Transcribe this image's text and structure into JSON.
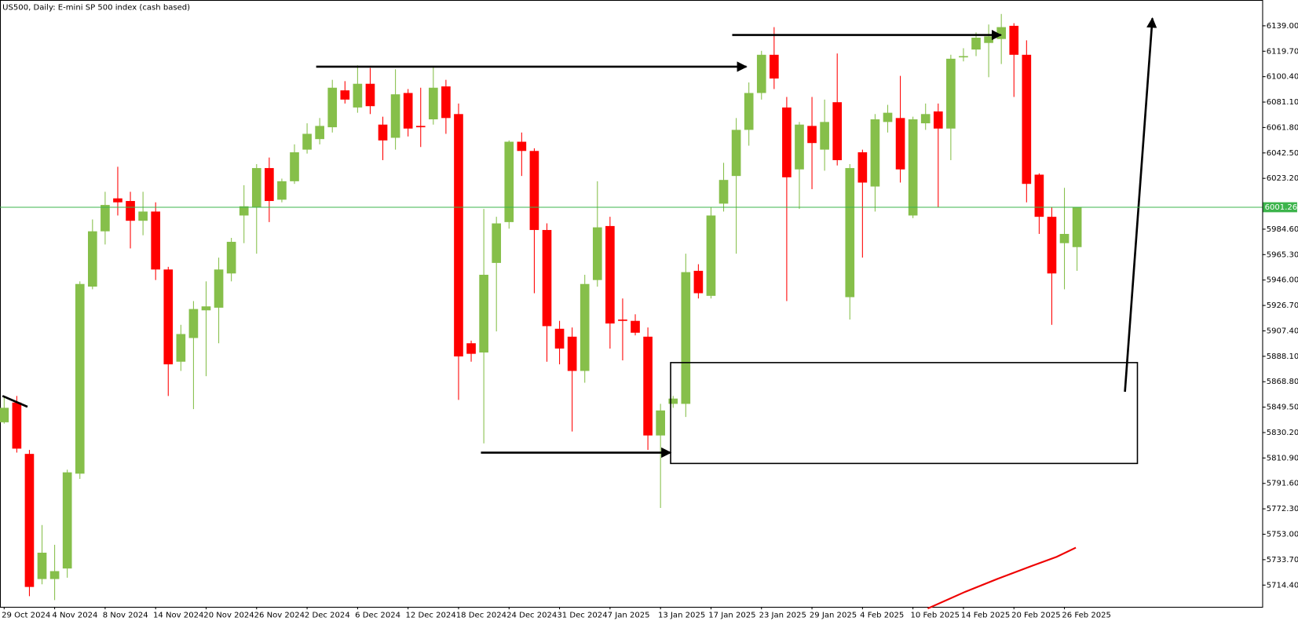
{
  "chart_data": {
    "type": "candlestick",
    "title": "US500, Daily:  E-mini SP 500 index (cash based)",
    "categories": [
      "29 Oct 2024",
      null,
      null,
      null,
      "4 Nov 2024",
      null,
      null,
      null,
      "8 Nov 2024",
      null,
      null,
      null,
      "14 Nov 2024",
      null,
      null,
      null,
      "20 Nov 2024",
      null,
      null,
      null,
      "26 Nov 2024",
      null,
      null,
      null,
      "2 Dec 2024",
      null,
      null,
      null,
      "6 Dec 2024",
      null,
      null,
      null,
      "12 Dec 2024",
      null,
      null,
      null,
      "18 Dec 2024",
      null,
      null,
      null,
      "24 Dec 2024",
      null,
      null,
      null,
      "31 Dec 2024",
      null,
      null,
      null,
      "7 Jan 2025",
      null,
      null,
      null,
      "13 Jan 2025",
      null,
      null,
      null,
      "17 Jan 2025",
      null,
      null,
      null,
      "23 Jan 2025",
      null,
      null,
      null,
      "29 Jan 2025",
      null,
      null,
      null,
      "4 Feb 2025",
      null,
      null,
      null,
      "10 Feb 2025",
      null,
      null,
      null,
      "14 Feb 2025",
      null,
      null,
      null,
      "20 Feb 2025",
      null,
      null,
      null,
      "26 Feb 2025",
      null
    ],
    "open": [
      5838,
      5853,
      5814,
      5719,
      5719,
      5727,
      5799,
      5941,
      5983,
      6008,
      6006,
      5991,
      5998,
      5954,
      5884,
      5902,
      5923,
      5925,
      5951,
      5995,
      6001,
      6031,
      6007,
      6021,
      6045,
      6053,
      6062,
      6090,
      6077,
      6095,
      6064,
      6054,
      6088,
      6063,
      6068,
      6093,
      6072,
      5898,
      5891,
      5959,
      5990,
      6051,
      6044,
      5984,
      5909,
      5903,
      5877,
      5946,
      5987,
      5916,
      5915,
      5903,
      5828,
      5852,
      5852,
      5953,
      5934,
      6004,
      6025,
      6060,
      6088,
      6117,
      6077,
      6030,
      6063,
      6045,
      6081,
      5933,
      6043,
      6017,
      6066,
      6069,
      5995,
      6065,
      6074,
      6061,
      6116,
      6121,
      6126,
      6129,
      6139,
      6117,
      6026,
      5994,
      5974,
      5971
    ],
    "high": [
      5858,
      5858,
      5817,
      5760,
      5745,
      5802,
      5945,
      5992,
      6013,
      6032,
      6013,
      6013,
      6005,
      5956,
      5912,
      5930,
      5945,
      5963,
      5978,
      6018,
      6034,
      6039,
      6023,
      6049,
      6065,
      6069,
      6098,
      6097,
      6109,
      6107,
      6070,
      6106,
      6091,
      6092,
      6108,
      6098,
      6080,
      5900,
      6000,
      5994,
      6052,
      6058,
      6046,
      5989,
      5915,
      5910,
      5950,
      6021,
      5994,
      5932,
      5920,
      5910,
      5852,
      5858,
      5966,
      5958,
      6001,
      6035,
      6069,
      6096,
      6120,
      6138,
      6085,
      6066,
      6085,
      6083,
      6118,
      6034,
      6045,
      6072,
      6079,
      6101,
      6070,
      6080,
      6080,
      6117,
      6122,
      6134,
      6140,
      6148,
      6141,
      6128,
      6027,
      6001,
      6016,
      6001
    ],
    "low": [
      5837,
      5815,
      5706,
      5715,
      5703,
      5720,
      5795,
      5939,
      5973,
      5995,
      5970,
      5980,
      5946,
      5858,
      5877,
      5848,
      5873,
      5898,
      5945,
      5974,
      5966,
      5990,
      6005,
      6019,
      6042,
      6049,
      6058,
      6080,
      6073,
      6072,
      6037,
      6045,
      6055,
      6047,
      6064,
      6057,
      5855,
      5884,
      5822,
      5907,
      5985,
      6025,
      5936,
      5884,
      5882,
      5831,
      5868,
      5941,
      5894,
      5885,
      5904,
      5817,
      5773,
      5849,
      5842,
      5932,
      5932,
      5998,
      5966,
      6048,
      6083,
      6091,
      5930,
      6000,
      6015,
      6029,
      6033,
      5916,
      5963,
      5998,
      6058,
      6020,
      5993,
      6060,
      6001,
      6037,
      6112,
      6116,
      6100,
      6110,
      6085,
      6005,
      5981,
      5912,
      5939,
      5953
    ],
    "close": [
      5849,
      5818,
      5713,
      5739,
      5725,
      5800,
      5943,
      5983,
      6003,
      6005,
      5991,
      5998,
      5954,
      5882,
      5905,
      5924,
      5926,
      5954,
      5975,
      6002,
      6031,
      6006,
      6021,
      6043,
      6057,
      6063,
      6092,
      6083,
      6095,
      6078,
      6052,
      6087,
      6061,
      6062,
      6092,
      6069,
      5888,
      5890,
      5950,
      5989,
      6051,
      6044,
      5984,
      5911,
      5894,
      5877,
      5943,
      5986,
      5913,
      5915,
      5906,
      5828,
      5847,
      5856,
      5952,
      5936,
      5995,
      6022,
      6060,
      6088,
      6117,
      6099,
      6024,
      6064,
      6050,
      6066,
      6037,
      6031,
      6020,
      6068,
      6073,
      6030,
      6068,
      6072,
      6061,
      6114,
      6116,
      6130,
      6131,
      6138,
      6117,
      6019,
      5994,
      5951,
      5981,
      6001
    ],
    "up_color": "#86bf4a",
    "down_color": "#ff0000",
    "current_price": 6001.26,
    "current_price_color": "#3cb44b",
    "ylim": [
      5697.9,
      6158.6
    ],
    "yticks": [
      {
        "value": 6139,
        "label": "6139.00"
      },
      {
        "value": 6119.7,
        "label": "6119.70"
      },
      {
        "value": 6100.4,
        "label": "6100.40"
      },
      {
        "value": 6081.1,
        "label": "6081.10"
      },
      {
        "value": 6061.8,
        "label": "6061.80"
      },
      {
        "value": 6042.5,
        "label": "6042.50"
      },
      {
        "value": 6023.2,
        "label": "6023.20"
      },
      {
        "value": 5984.6,
        "label": "5984.60"
      },
      {
        "value": 5965.3,
        "label": "5965.30"
      },
      {
        "value": 5946,
        "label": "5946.00"
      },
      {
        "value": 5926.7,
        "label": "5926.70"
      },
      {
        "value": 5907.4,
        "label": "5907.40"
      },
      {
        "value": 5888.1,
        "label": "5888.10"
      },
      {
        "value": 5868.8,
        "label": "5868.80"
      },
      {
        "value": 5849.5,
        "label": "5849.50"
      },
      {
        "value": 5830.2,
        "label": "5830.20"
      },
      {
        "value": 5810.9,
        "label": "5810.90"
      },
      {
        "value": 5791.6,
        "label": "5791.60"
      },
      {
        "value": 5772.3,
        "label": "5772.30"
      },
      {
        "value": 5753,
        "label": "5753.00"
      },
      {
        "value": 5733.7,
        "label": "5733.70"
      },
      {
        "value": 5714.4,
        "label": "5714.40"
      }
    ],
    "grid": false
  }
}
